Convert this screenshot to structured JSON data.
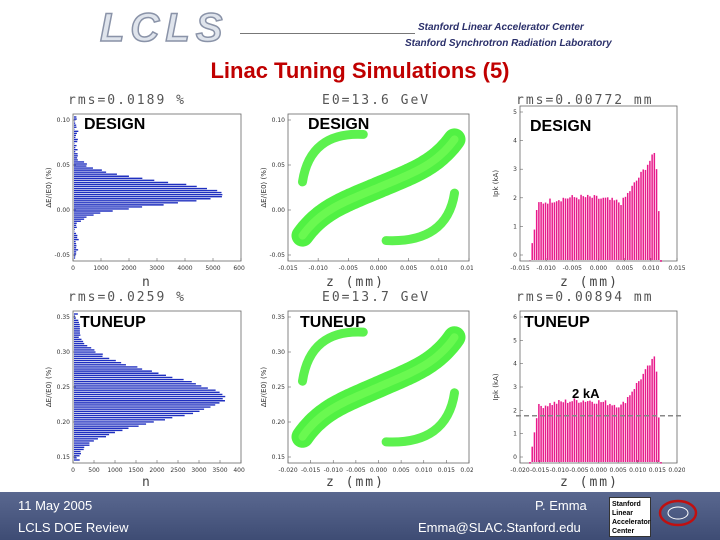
{
  "header": {
    "logo": "LCLS",
    "institution_1": "Stanford Linear Accelerator Center",
    "institution_2": "Stanford Synchrotron Radiation Laboratory"
  },
  "title": "Linac Tuning Simulations (5)",
  "panels": {
    "design_energy": {
      "label": "DESIGN",
      "top_text": "rms=0.0189 %",
      "bottom_text": "n",
      "yticks": [
        "0.10",
        "0.05",
        "0.00",
        "-0.05"
      ],
      "xticks": [
        "0",
        "1000",
        "2000",
        "3000",
        "4000",
        "5000",
        "6000"
      ],
      "ylabel": "ΔE/⟨E0⟩ (%)"
    },
    "design_phase": {
      "label": "DESIGN",
      "top_text": "E0=13.6 GeV",
      "bottom_text": "z (mm)",
      "yticks": [
        "0.10",
        "0.05",
        "0.00",
        "-0.05"
      ],
      "xticks": [
        "-0.015",
        "-0.010",
        "-0.005",
        "0.000",
        "0.005",
        "0.010",
        "0.015"
      ],
      "ylabel": "ΔE/⟨E0⟩ (%)"
    },
    "design_current": {
      "label": "DESIGN",
      "top_text": "rms=0.00772 mm",
      "bottom_text": "z (mm)",
      "yticks": [
        "5",
        "4",
        "3",
        "2",
        "1",
        "0"
      ],
      "xticks": [
        "-0.015",
        "-0.010",
        "-0.005",
        "0.000",
        "0.005",
        "0.010",
        "0.015"
      ],
      "ylabel": "Ipk (kA)"
    },
    "tuneup_energy": {
      "label": "TUNEUP",
      "top_text": "rms=0.0259 %",
      "bottom_text": "n",
      "yticks": [
        "0.35",
        "0.30",
        "0.25",
        "0.20",
        "0.15"
      ],
      "xticks": [
        "0",
        "500",
        "1000",
        "1500",
        "2000",
        "2500",
        "3000",
        "3500",
        "4000"
      ],
      "ylabel": "ΔE/⟨E0⟩ (%)"
    },
    "tuneup_phase": {
      "label": "TUNEUP",
      "top_text": "E0=13.7 GeV",
      "bottom_text": "z (mm)",
      "yticks": [
        "0.35",
        "0.30",
        "0.25",
        "0.20",
        "0.15"
      ],
      "xticks": [
        "-0.020",
        "-0.015",
        "-0.010",
        "-0.005",
        "0.000",
        "0.005",
        "0.010",
        "0.015",
        "0.020"
      ],
      "ylabel": "ΔE/⟨E0⟩ (%)"
    },
    "tuneup_current": {
      "label": "TUNEUP",
      "top_text": "rms=0.00894 mm",
      "bottom_text": "z (mm)",
      "yticks": [
        "6",
        "5",
        "4",
        "3",
        "2",
        "1",
        "0"
      ],
      "xticks": [
        "-0.020",
        "-0.015",
        "-0.010",
        "-0.005",
        "0.000",
        "0.005",
        "0.010",
        "0.015",
        "0.020"
      ],
      "ylabel": "Ipk (kA)",
      "annotation": "2 kA"
    }
  },
  "colors": {
    "title": "#c00000",
    "histogram": "#1f2fbf",
    "scatter": "#33ee22",
    "current": "#e8198b",
    "footer": "#4a5880"
  },
  "footer": {
    "date": "11 May 2005",
    "event": "LCLS DOE Review",
    "author": "P. Emma",
    "email": "Emma@SLAC.Stanford.edu",
    "badge": [
      "Stanford",
      "Linear",
      "Accelerator",
      "Center"
    ]
  }
}
